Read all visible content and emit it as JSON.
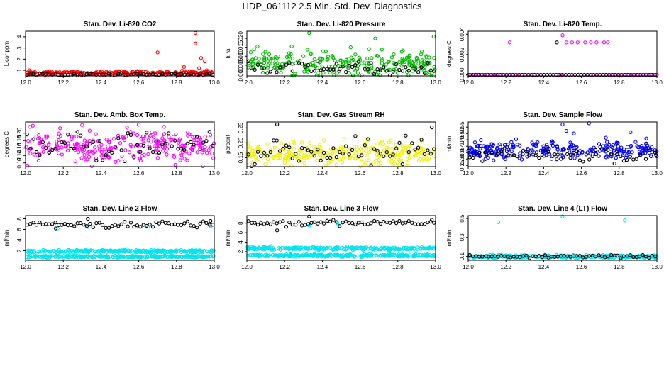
{
  "page_title": "HDP_061112  2.5 Min. Std. Dev. Diagnostics",
  "chart_data": [
    {
      "type": "scatter",
      "title": "Stan. Dev. Li-820 CO2",
      "xlabel": "",
      "ylabel": "Licor ppm",
      "xlim": [
        12.0,
        13.0
      ],
      "ylim": [
        0.5,
        4.5
      ],
      "xticks": [
        "12.0",
        "12.2",
        "12.4",
        "12.6",
        "12.8",
        "13.0"
      ],
      "yticks": [
        "1",
        "2",
        "3",
        "4"
      ],
      "ytick_values": [
        1,
        2,
        3,
        4
      ],
      "series": [
        {
          "name": "red",
          "color": "#ff0000",
          "base": 0.75,
          "spread": 0.08,
          "outliers": [
            [
              12.7,
              2.6
            ],
            [
              12.9,
              4.35
            ],
            [
              12.9,
              3.4
            ],
            [
              12.93,
              2.1
            ],
            [
              12.92,
              1.2
            ],
            [
              12.95,
              1.8
            ],
            [
              12.96,
              1.0
            ],
            [
              12.84,
              1.3
            ],
            [
              12.02,
              1.0
            ],
            [
              12.88,
              0.9
            ]
          ]
        },
        {
          "name": "black",
          "color": "#000000",
          "base": 0.62,
          "spread": 0.05,
          "outliers": []
        }
      ]
    },
    {
      "type": "scatter",
      "title": "Stan. Dev. Li-820 Pressure",
      "xlabel": "",
      "ylabel": "kPa",
      "xlim": [
        12.0,
        13.0
      ],
      "ylim": [
        -0.001,
        0.024
      ],
      "xticks": [
        "12.0",
        "12.2",
        "12.4",
        "12.6",
        "12.8",
        "13.0"
      ],
      "yticks": [
        "0.000",
        "0.005",
        "0.010",
        "0.015",
        "0.020"
      ],
      "ytick_values": [
        0,
        0.005,
        0.01,
        0.015,
        0.02
      ],
      "series": [
        {
          "name": "green",
          "color": "#00bb00",
          "base": 0.006,
          "spread": 0.0035,
          "outliers": [
            [
              12.33,
              0.023
            ],
            [
              12.68,
              0.02
            ],
            [
              12.99,
              0.021
            ],
            [
              12.55,
              0.015
            ]
          ]
        },
        {
          "name": "black",
          "color": "#000000",
          "base": 0.003,
          "spread": 0.002,
          "outliers": []
        }
      ]
    },
    {
      "type": "scatter",
      "title": "Stan. Dev. Li-820 Temp.",
      "xlabel": "",
      "ylabel": "degrees C",
      "xlim": [
        12.0,
        13.0
      ],
      "ylim": [
        -0.0001,
        0.0043
      ],
      "xticks": [
        "12.0",
        "12.2",
        "12.4",
        "12.6",
        "12.8",
        "13.0"
      ],
      "yticks": [
        "0.000",
        "0.002",
        "0.004"
      ],
      "ytick_values": [
        0,
        0.002,
        0.004
      ],
      "series": [
        {
          "name": "magenta",
          "color": "#ff00ff",
          "base": 0.0,
          "spread": 0.0,
          "outliers": [
            [
              12.22,
              0.0032
            ],
            [
              12.5,
              0.0039
            ],
            [
              12.52,
              0.0032
            ],
            [
              12.55,
              0.0032
            ],
            [
              12.58,
              0.0032
            ],
            [
              12.62,
              0.0032
            ],
            [
              12.65,
              0.0032
            ],
            [
              12.68,
              0.0032
            ],
            [
              12.72,
              0.0032
            ],
            [
              12.74,
              0.0032
            ],
            [
              12.49,
              0.0
            ]
          ]
        },
        {
          "name": "black",
          "color": "#000000",
          "base": 0.0,
          "spread": 0.0,
          "outliers": [
            [
              12.47,
              0.0032
            ]
          ]
        }
      ]
    },
    {
      "type": "scatter",
      "title": "Stan. Dev. Amb. Box Temp.",
      "xlabel": "",
      "ylabel": "degrees C",
      "xlim": [
        12.0,
        13.0
      ],
      "ylim": [
        0.11,
        0.23
      ],
      "xticks": [
        "12.0",
        "12.2",
        "12.4",
        "12.6",
        "12.8",
        "13.0"
      ],
      "yticks": [
        "0.12",
        "0.14",
        "0.16",
        "0.18",
        "0.20"
      ],
      "ytick_values": [
        0.12,
        0.14,
        0.16,
        0.18,
        0.2
      ],
      "series": [
        {
          "name": "magenta",
          "color": "#ff00ff",
          "base": 0.165,
          "spread": 0.022,
          "outliers": [
            [
              12.01,
              0.113
            ],
            [
              12.3,
              0.222
            ],
            [
              12.6,
              0.223
            ]
          ]
        },
        {
          "name": "black",
          "color": "#000000",
          "base": 0.165,
          "spread": 0.02,
          "outliers": []
        }
      ]
    },
    {
      "type": "scatter",
      "title": "Stan. Dev. Gas Stream RH",
      "xlabel": "",
      "ylabel": "percent",
      "xlim": [
        12.0,
        13.0
      ],
      "ylim": [
        0.12,
        0.27
      ],
      "xticks": [
        "12.0",
        "12.2",
        "12.4",
        "12.6",
        "12.8",
        "13.0"
      ],
      "yticks": [
        "0.15",
        "0.20",
        "0.25"
      ],
      "ytick_values": [
        0.15,
        0.2,
        0.25
      ],
      "series": [
        {
          "name": "yellow",
          "color": "#f0f000",
          "base": 0.165,
          "spread": 0.018,
          "outliers": []
        },
        {
          "name": "black",
          "color": "#000000",
          "base": 0.17,
          "spread": 0.022,
          "outliers": [
            [
              12.16,
              0.262
            ],
            [
              12.98,
              0.252
            ]
          ]
        }
      ]
    },
    {
      "type": "scatter",
      "title": "Stan. Dev. Sample Flow",
      "xlabel": "",
      "ylabel": "ml/min",
      "xlim": [
        12.0,
        13.0
      ],
      "ylim": [
        0.24,
        0.59
      ],
      "xticks": [
        "12.0",
        "12.2",
        "12.4",
        "12.6",
        "12.8",
        "13.0"
      ],
      "yticks": [
        "0.25",
        "0.30",
        "0.35",
        "0.40",
        "0.45",
        "0.50",
        "0.55"
      ],
      "ytick_values": [
        0.25,
        0.3,
        0.35,
        0.4,
        0.45,
        0.5,
        0.55
      ],
      "series": [
        {
          "name": "blue",
          "color": "#0000ff",
          "base": 0.37,
          "spread": 0.035,
          "outliers": [
            [
              12.5,
              0.57
            ],
            [
              12.64,
              0.58
            ],
            [
              12.52,
              0.52
            ],
            [
              12.56,
              0.5
            ],
            [
              12.86,
              0.51
            ]
          ]
        },
        {
          "name": "black",
          "color": "#000000",
          "base": 0.33,
          "spread": 0.025,
          "outliers": []
        }
      ]
    },
    {
      "type": "scatter",
      "title": "Stan. Dev. Line 2 Flow",
      "xlabel": "",
      "ylabel": "ml/min",
      "xlim": [
        12.0,
        13.0
      ],
      "ylim": [
        0.2,
        8.6
      ],
      "xticks": [
        "12.0",
        "12.2",
        "12.4",
        "12.6",
        "12.8",
        "13.0"
      ],
      "yticks": [
        "2",
        "4",
        "6",
        "8"
      ],
      "ytick_values": [
        2,
        4,
        6,
        8
      ],
      "series": [
        {
          "name": "cyan-upper",
          "color": "#00e5ee",
          "base": 1.9,
          "spread": 0.12,
          "outliers": [
            [
              12.17,
              6.2
            ],
            [
              12.33,
              6.5
            ],
            [
              12.65,
              6.5
            ],
            [
              12.98,
              6.6
            ]
          ]
        },
        {
          "name": "cyan-lower",
          "color": "#00e5ee",
          "base": 0.9,
          "spread": 0.1,
          "outliers": []
        },
        {
          "name": "black",
          "color": "#000000",
          "base": 6.9,
          "spread": 0.3,
          "outliers": [
            [
              12.33,
              8.0
            ],
            [
              12.16,
              6.2
            ],
            [
              12.98,
              7.6
            ]
          ]
        }
      ]
    },
    {
      "type": "scatter",
      "title": "Stan. Dev. Line 3 Flow",
      "xlabel": "",
      "ylabel": "ml/min",
      "xlim": [
        12.0,
        13.0
      ],
      "ylim": [
        0.2,
        9.6
      ],
      "xticks": [
        "12.0",
        "12.2",
        "12.4",
        "12.6",
        "12.8",
        "13.0"
      ],
      "yticks": [
        "2",
        "4",
        "6",
        "8"
      ],
      "ytick_values": [
        2,
        4,
        6,
        8
      ],
      "series": [
        {
          "name": "cyan-upper",
          "color": "#00e5ee",
          "base": 2.7,
          "spread": 0.15,
          "outliers": [
            [
              12.33,
              7.5
            ],
            [
              12.48,
              8.0
            ]
          ]
        },
        {
          "name": "cyan-lower",
          "color": "#00e5ee",
          "base": 1.2,
          "spread": 0.12,
          "outliers": []
        },
        {
          "name": "black",
          "color": "#000000",
          "base": 8.0,
          "spread": 0.3,
          "outliers": [
            [
              12.16,
              6.5
            ],
            [
              12.33,
              9.4
            ],
            [
              12.98,
              8.7
            ]
          ]
        }
      ]
    },
    {
      "type": "scatter",
      "title": "Stan. Dev. Line 4 (LT) Flow",
      "xlabel": "",
      "ylabel": "ml/min",
      "xlim": [
        12.0,
        13.0
      ],
      "ylim": [
        0.06,
        0.53
      ],
      "xticks": [
        "12.0",
        "12.2",
        "12.4",
        "12.6",
        "12.8",
        "13.0"
      ],
      "yticks": [
        "0.1",
        "0.3",
        "0.5"
      ],
      "ytick_values": [
        0.1,
        0.3,
        0.5
      ],
      "series": [
        {
          "name": "cyan",
          "color": "#00e5ee",
          "base": 0.1,
          "spread": 0.008,
          "outliers": [
            [
              12.16,
              0.46
            ],
            [
              12.5,
              0.52
            ],
            [
              12.83,
              0.48
            ]
          ]
        },
        {
          "name": "black",
          "color": "#000000",
          "base": 0.1,
          "spread": 0.008,
          "outliers": []
        }
      ]
    }
  ]
}
